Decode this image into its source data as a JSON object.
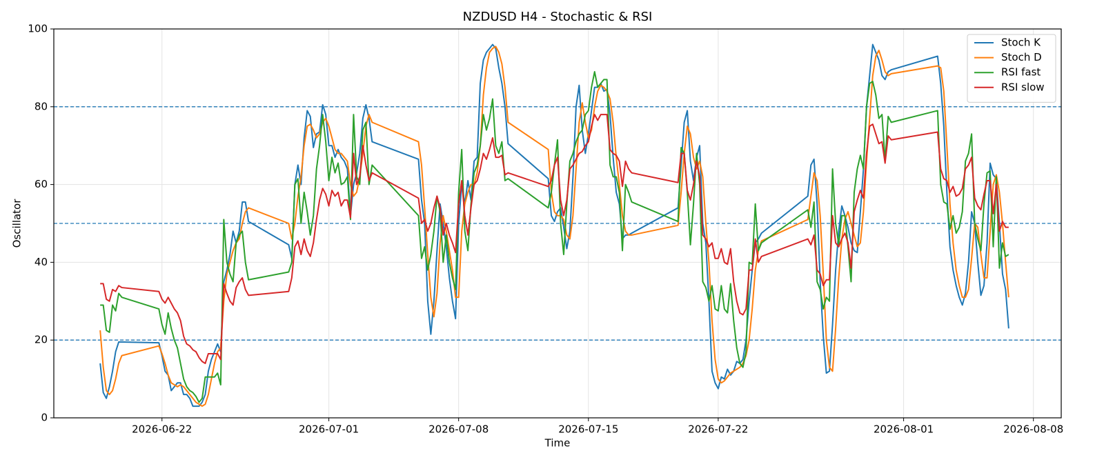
{
  "chart_data": {
    "type": "line",
    "title": "NZDUSD H4 - Stochastic & RSI",
    "xlabel": "Time",
    "ylabel": "Oscillator",
    "xlim": [
      "2026-06-16 04:00",
      "2026-08-09 12:00"
    ],
    "xticks": [
      "2026-06-22",
      "2026-07-01",
      "2026-07-08",
      "2026-07-15",
      "2026-07-22",
      "2026-08-01",
      "2026-08-08"
    ],
    "ylim": [
      0,
      100
    ],
    "yticks": [
      0,
      20,
      40,
      60,
      80,
      100
    ],
    "grid": true,
    "legend": "upper right",
    "hlines": [
      20,
      50,
      80
    ],
    "hline_color": "#1f77b4",
    "x": [
      "2026-06-18 16:00",
      "2026-06-18 20:00",
      "2026-06-19 00:00",
      "2026-06-19 04:00",
      "2026-06-19 08:00",
      "2026-06-19 12:00",
      "2026-06-19 16:00",
      "2026-06-19 20:00",
      "2026-06-21 20:00",
      "2026-06-22 00:00",
      "2026-06-22 04:00",
      "2026-06-22 08:00",
      "2026-06-22 12:00",
      "2026-06-22 16:00",
      "2026-06-22 20:00",
      "2026-06-23 00:00",
      "2026-06-23 04:00",
      "2026-06-23 08:00",
      "2026-06-23 12:00",
      "2026-06-23 16:00",
      "2026-06-23 20:00",
      "2026-06-24 00:00",
      "2026-06-24 04:00",
      "2026-06-24 08:00",
      "2026-06-24 12:00",
      "2026-06-24 16:00",
      "2026-06-24 20:00",
      "2026-06-25 00:00",
      "2026-06-25 04:00",
      "2026-06-25 08:00",
      "2026-06-25 12:00",
      "2026-06-25 16:00",
      "2026-06-25 20:00",
      "2026-06-26 00:00",
      "2026-06-26 04:00",
      "2026-06-26 08:00",
      "2026-06-26 12:00",
      "2026-06-26 16:00",
      "2026-06-28 20:00",
      "2026-06-29 00:00",
      "2026-06-29 04:00",
      "2026-06-29 08:00",
      "2026-06-29 12:00",
      "2026-06-29 16:00",
      "2026-06-29 20:00",
      "2026-06-30 00:00",
      "2026-06-30 04:00",
      "2026-06-30 08:00",
      "2026-06-30 12:00",
      "2026-06-30 16:00",
      "2026-06-30 20:00",
      "2026-07-01 00:00",
      "2026-07-01 04:00",
      "2026-07-01 08:00",
      "2026-07-01 12:00",
      "2026-07-01 16:00",
      "2026-07-01 20:00",
      "2026-07-02 00:00",
      "2026-07-02 04:00",
      "2026-07-02 08:00",
      "2026-07-02 12:00",
      "2026-07-02 16:00",
      "2026-07-02 20:00",
      "2026-07-03 00:00",
      "2026-07-03 04:00",
      "2026-07-03 08:00",
      "2026-07-05 20:00",
      "2026-07-06 00:00",
      "2026-07-06 04:00",
      "2026-07-06 08:00",
      "2026-07-06 12:00",
      "2026-07-06 16:00",
      "2026-07-06 20:00",
      "2026-07-07 00:00",
      "2026-07-07 04:00",
      "2026-07-07 08:00",
      "2026-07-07 12:00",
      "2026-07-07 16:00",
      "2026-07-07 20:00",
      "2026-07-08 00:00",
      "2026-07-08 04:00",
      "2026-07-08 08:00",
      "2026-07-08 12:00",
      "2026-07-08 16:00",
      "2026-07-08 20:00",
      "2026-07-09 00:00",
      "2026-07-09 04:00",
      "2026-07-09 08:00",
      "2026-07-09 12:00",
      "2026-07-09 16:00",
      "2026-07-09 20:00",
      "2026-07-10 00:00",
      "2026-07-10 04:00",
      "2026-07-10 08:00",
      "2026-07-10 12:00",
      "2026-07-10 16:00",
      "2026-07-12 20:00",
      "2026-07-13 00:00",
      "2026-07-13 04:00",
      "2026-07-13 08:00",
      "2026-07-13 12:00",
      "2026-07-13 16:00",
      "2026-07-13 20:00",
      "2026-07-14 00:00",
      "2026-07-14 04:00",
      "2026-07-14 08:00",
      "2026-07-14 12:00",
      "2026-07-14 16:00",
      "2026-07-14 20:00",
      "2026-07-15 00:00",
      "2026-07-15 04:00",
      "2026-07-15 08:00",
      "2026-07-15 12:00",
      "2026-07-15 16:00",
      "2026-07-15 20:00",
      "2026-07-16 00:00",
      "2026-07-16 04:00",
      "2026-07-16 08:00",
      "2026-07-16 12:00",
      "2026-07-16 16:00",
      "2026-07-16 20:00",
      "2026-07-17 00:00",
      "2026-07-17 04:00",
      "2026-07-17 08:00",
      "2026-07-19 20:00",
      "2026-07-20 00:00",
      "2026-07-20 04:00",
      "2026-07-20 08:00",
      "2026-07-20 12:00",
      "2026-07-20 16:00",
      "2026-07-20 20:00",
      "2026-07-21 00:00",
      "2026-07-21 04:00",
      "2026-07-21 08:00",
      "2026-07-21 12:00",
      "2026-07-21 16:00",
      "2026-07-21 20:00",
      "2026-07-22 00:00",
      "2026-07-22 04:00",
      "2026-07-22 08:00",
      "2026-07-22 12:00",
      "2026-07-22 16:00",
      "2026-07-22 20:00",
      "2026-07-23 00:00",
      "2026-07-23 04:00",
      "2026-07-23 08:00",
      "2026-07-23 12:00",
      "2026-07-23 16:00",
      "2026-07-23 20:00",
      "2026-07-24 00:00",
      "2026-07-24 04:00",
      "2026-07-24 08:00",
      "2026-07-26 20:00",
      "2026-07-27 00:00",
      "2026-07-27 04:00",
      "2026-07-27 08:00",
      "2026-07-27 12:00",
      "2026-07-27 16:00",
      "2026-07-27 20:00",
      "2026-07-28 00:00",
      "2026-07-28 04:00",
      "2026-07-28 08:00",
      "2026-07-28 12:00",
      "2026-07-28 16:00",
      "2026-07-28 20:00",
      "2026-07-29 00:00",
      "2026-07-29 04:00",
      "2026-07-29 08:00",
      "2026-07-29 12:00",
      "2026-07-29 16:00",
      "2026-07-29 20:00",
      "2026-07-30 00:00",
      "2026-07-30 04:00",
      "2026-07-30 08:00",
      "2026-07-30 12:00",
      "2026-07-30 16:00",
      "2026-07-30 20:00",
      "2026-07-31 00:00",
      "2026-07-31 04:00",
      "2026-07-31 08:00",
      "2026-08-02 20:00",
      "2026-08-03 00:00",
      "2026-08-03 04:00",
      "2026-08-03 08:00",
      "2026-08-03 12:00",
      "2026-08-03 16:00",
      "2026-08-03 20:00",
      "2026-08-04 00:00",
      "2026-08-04 04:00",
      "2026-08-04 08:00",
      "2026-08-04 12:00",
      "2026-08-04 16:00",
      "2026-08-04 20:00",
      "2026-08-05 00:00",
      "2026-08-05 04:00",
      "2026-08-05 08:00",
      "2026-08-05 12:00",
      "2026-08-05 16:00",
      "2026-08-05 20:00",
      "2026-08-06 00:00",
      "2026-08-06 04:00",
      "2026-08-06 08:00",
      "2026-08-06 12:00",
      "2026-08-06 16:00"
    ],
    "series": [
      {
        "name": "Stoch K",
        "color": "#1f77b4",
        "values": [
          14,
          6.5,
          5,
          8,
          12,
          17,
          19.5,
          19.5,
          19.3,
          16,
          12,
          11,
          7,
          8,
          9,
          9,
          6,
          6,
          5,
          3,
          3,
          3,
          4,
          6,
          12,
          15,
          17,
          19,
          17,
          35,
          38,
          42,
          48,
          45,
          48,
          55.5,
          55.5,
          50.5,
          44.5,
          41,
          60,
          65,
          60,
          72,
          79,
          77.5,
          69.5,
          73,
          73.5,
          80.5,
          78,
          70,
          70,
          67,
          69,
          67,
          66,
          64,
          52,
          60,
          63,
          68,
          77,
          80.5,
          77,
          71,
          66.5,
          56,
          50,
          30,
          21.5,
          30,
          43,
          55,
          50,
          44,
          36,
          30,
          25.5,
          50,
          60,
          55,
          61,
          56,
          66,
          67,
          86,
          92,
          94,
          95,
          96,
          95,
          90,
          86,
          80,
          70.5,
          61.5,
          52,
          50.5,
          53,
          54,
          49,
          43.5,
          48,
          62,
          80,
          85.5,
          74,
          68,
          73,
          79,
          85,
          85,
          86,
          84,
          84.5,
          78,
          67,
          58,
          55,
          46,
          47,
          47,
          47.5,
          54,
          65,
          76,
          79,
          66,
          61,
          67,
          70,
          50,
          45,
          30,
          12,
          9,
          7.5,
          10.5,
          10,
          12.5,
          11,
          12,
          14.5,
          14,
          15,
          20,
          30,
          38,
          45,
          46,
          47.5,
          57,
          65,
          66.5,
          55,
          35,
          21,
          11.5,
          12,
          24,
          38,
          48,
          54.5,
          52,
          49,
          45,
          43,
          42.5,
          53,
          64,
          80,
          88,
          96,
          94,
          92,
          88,
          87,
          89,
          89.5,
          93,
          86,
          75,
          58,
          44,
          38,
          34,
          31,
          29,
          32,
          40,
          53,
          50,
          40,
          31.5,
          34,
          45,
          65.5,
          62.5,
          61.5,
          50,
          37,
          33,
          23
        ]
      },
      {
        "name": "Stoch D",
        "color": "#ff7f0e",
        "values": [
          22.5,
          13,
          7,
          6,
          7,
          10,
          14,
          16,
          18.5,
          16.5,
          14,
          11,
          9,
          8.5,
          8,
          8.5,
          8,
          7,
          6,
          5,
          4,
          3.5,
          3,
          3.5,
          6,
          10,
          14,
          17,
          18,
          30,
          37,
          40,
          43,
          45,
          46,
          50,
          53,
          54,
          50,
          46,
          50,
          57,
          62,
          70,
          75,
          75.5,
          74,
          72,
          73,
          76,
          77,
          75,
          72,
          69,
          68,
          68,
          67,
          66,
          60,
          57,
          58,
          62,
          68,
          75,
          78,
          76,
          71,
          65,
          54,
          42,
          31,
          26,
          32,
          45,
          52,
          48,
          43,
          38,
          31,
          31,
          48,
          55,
          58,
          60,
          60,
          63,
          70,
          83,
          90,
          94,
          95,
          95.5,
          94,
          91,
          85,
          76,
          69,
          58,
          53,
          52,
          52,
          51,
          47,
          46,
          52,
          64,
          76,
          81,
          76,
          72,
          74,
          80,
          84,
          85.5,
          85,
          84,
          82,
          76,
          67,
          60,
          52,
          48,
          47,
          47,
          49.5,
          58,
          68,
          75,
          73,
          67,
          64,
          66,
          62,
          50,
          40,
          25,
          15,
          10,
          9,
          9.5,
          10.5,
          11.5,
          12,
          12.5,
          13,
          14,
          16,
          20,
          28,
          38,
          43,
          45.5,
          51,
          57,
          63,
          61,
          52,
          37,
          20,
          13,
          12,
          23,
          36,
          46,
          51,
          53,
          50,
          47,
          44,
          45,
          53,
          66,
          77,
          88,
          93,
          94.5,
          92,
          89,
          88,
          88.5,
          90.5,
          90,
          84,
          70,
          55,
          45,
          38,
          34,
          31,
          31,
          33,
          41,
          50,
          49,
          42,
          36,
          36,
          48,
          60,
          62.5,
          58,
          50,
          40,
          31
        ]
      },
      {
        "name": "RSI fast",
        "color": "#2ca02c",
        "values": [
          29,
          29,
          22.5,
          22,
          29,
          27.5,
          32,
          31,
          28,
          24,
          21.5,
          27,
          23,
          20,
          18,
          14,
          10,
          8,
          7,
          6.5,
          5.5,
          4,
          5,
          10.5,
          10.5,
          10.5,
          10.5,
          11.5,
          8.5,
          51,
          40,
          37,
          35,
          45,
          47,
          48,
          40,
          35.5,
          37.5,
          40,
          60,
          61.5,
          50,
          58,
          53,
          47,
          52,
          64,
          70,
          78,
          71,
          61,
          67,
          63,
          65.5,
          60,
          60.5,
          62,
          51,
          78,
          62,
          60,
          74,
          76,
          60,
          65,
          52,
          41,
          44,
          38,
          42,
          48,
          57,
          53,
          40,
          47,
          40,
          36,
          33,
          58,
          69,
          48,
          43,
          55,
          63,
          65,
          70,
          78,
          74,
          77,
          82,
          70,
          68,
          71,
          61,
          61.5,
          54,
          58,
          65,
          71.5,
          50,
          42,
          55,
          66,
          68,
          71,
          73,
          74,
          78,
          79,
          85,
          89,
          85,
          86,
          87,
          87,
          65,
          62,
          62,
          58,
          43,
          60,
          58,
          55.5,
          50.5,
          69.5,
          68,
          58,
          44.5,
          55,
          68,
          60,
          35,
          33.5,
          30,
          34,
          28,
          27.5,
          34,
          28,
          27,
          34.5,
          25,
          18,
          14,
          13,
          17,
          40,
          39.5,
          55,
          43,
          45,
          53.5,
          49,
          55.5,
          35,
          33,
          28,
          31,
          30,
          64,
          50,
          44.5,
          52,
          52,
          44,
          35,
          58,
          64,
          67.5,
          64,
          80,
          86,
          86.5,
          83,
          77,
          78,
          66,
          77.5,
          76,
          79,
          60,
          55.5,
          55,
          48.5,
          52,
          47.5,
          49,
          53,
          66,
          68,
          73,
          50,
          46,
          43,
          55,
          63,
          63.5,
          44,
          62,
          38.5,
          45,
          41.5,
          42
        ]
      },
      {
        "name": "RSI slow",
        "color": "#d62728",
        "values": [
          34.5,
          34.5,
          30.5,
          30,
          33,
          32.5,
          34,
          33.5,
          32.5,
          30.5,
          29.5,
          31,
          29.5,
          28,
          27,
          25,
          21,
          19,
          18.5,
          17.5,
          17,
          15.5,
          14.5,
          14,
          16.5,
          16.5,
          16.5,
          16.5,
          15,
          34.5,
          32,
          30,
          29,
          33.5,
          35,
          36,
          33,
          31.5,
          32.5,
          36,
          44,
          45.5,
          42,
          46,
          43,
          41.5,
          45,
          51,
          56,
          59,
          57.5,
          54.5,
          58.5,
          57,
          58,
          54.5,
          56,
          56,
          51.5,
          68,
          60,
          62,
          70,
          65,
          61,
          63,
          56.5,
          50,
          51,
          48,
          50,
          54,
          57,
          54,
          47,
          50,
          47,
          45,
          42.5,
          55,
          61,
          52,
          47,
          54,
          60,
          61,
          64,
          68,
          66.5,
          69,
          72,
          67,
          67,
          67.5,
          62.5,
          63,
          59.5,
          61,
          65,
          67,
          56,
          52,
          56,
          64,
          65,
          66.5,
          68,
          68.5,
          70,
          71,
          75,
          78,
          76.5,
          78,
          78,
          78,
          69,
          68,
          67.5,
          66,
          59.5,
          66,
          64,
          63,
          60.5,
          68,
          68,
          58.5,
          56,
          60,
          66,
          62,
          47,
          46,
          44,
          45,
          41,
          41,
          43.5,
          40,
          39.5,
          43.5,
          35,
          30,
          27,
          26.5,
          28,
          38,
          38,
          46,
          40,
          41.5,
          46,
          44.5,
          47,
          38,
          37,
          34,
          35.5,
          35.5,
          52,
          45,
          44,
          46,
          47.5,
          45,
          38.5,
          53,
          56,
          58.5,
          56.5,
          68,
          75,
          75.5,
          73,
          70.5,
          71,
          65.5,
          72.5,
          71.5,
          73.5,
          64,
          61.5,
          61,
          58,
          59.5,
          57,
          57.5,
          59,
          64,
          65,
          67,
          56.5,
          54.5,
          53.5,
          57.5,
          61,
          61,
          52.5,
          60,
          48,
          50.5,
          49,
          49
        ]
      }
    ]
  }
}
